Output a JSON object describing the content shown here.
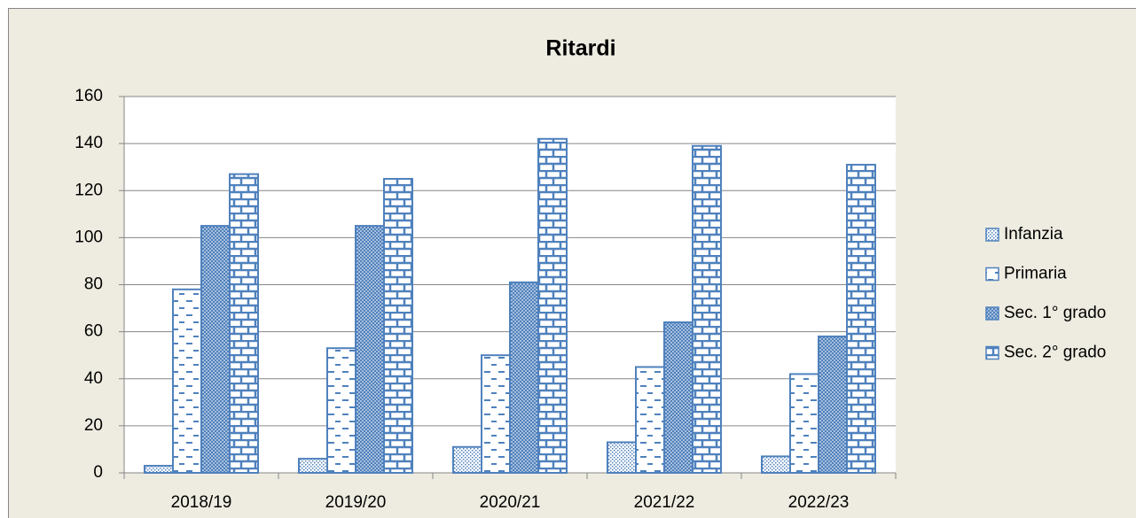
{
  "chart_data": {
    "type": "bar",
    "title": "Ritardi",
    "categories": [
      "2018/19",
      "2019/20",
      "2020/21",
      "2021/22",
      "2022/23"
    ],
    "series": [
      {
        "name": "Infanzia",
        "color": "#4f81bd",
        "values": [
          3,
          6,
          11,
          13,
          7
        ]
      },
      {
        "name": "Primaria",
        "color": "#4f81bd",
        "values": [
          78,
          53,
          50,
          45,
          42
        ]
      },
      {
        "name": "Sec. 1° grado",
        "color": "#4f81bd",
        "values": [
          105,
          105,
          81,
          64,
          58
        ]
      },
      {
        "name": "Sec. 2° grado",
        "color": "#4f81bd",
        "values": [
          127,
          125,
          142,
          139,
          131
        ]
      }
    ],
    "ylim": [
      0,
      160
    ],
    "yticks": [
      0,
      20,
      40,
      60,
      80,
      100,
      120,
      140,
      160
    ],
    "grid": true,
    "legend": "right"
  }
}
